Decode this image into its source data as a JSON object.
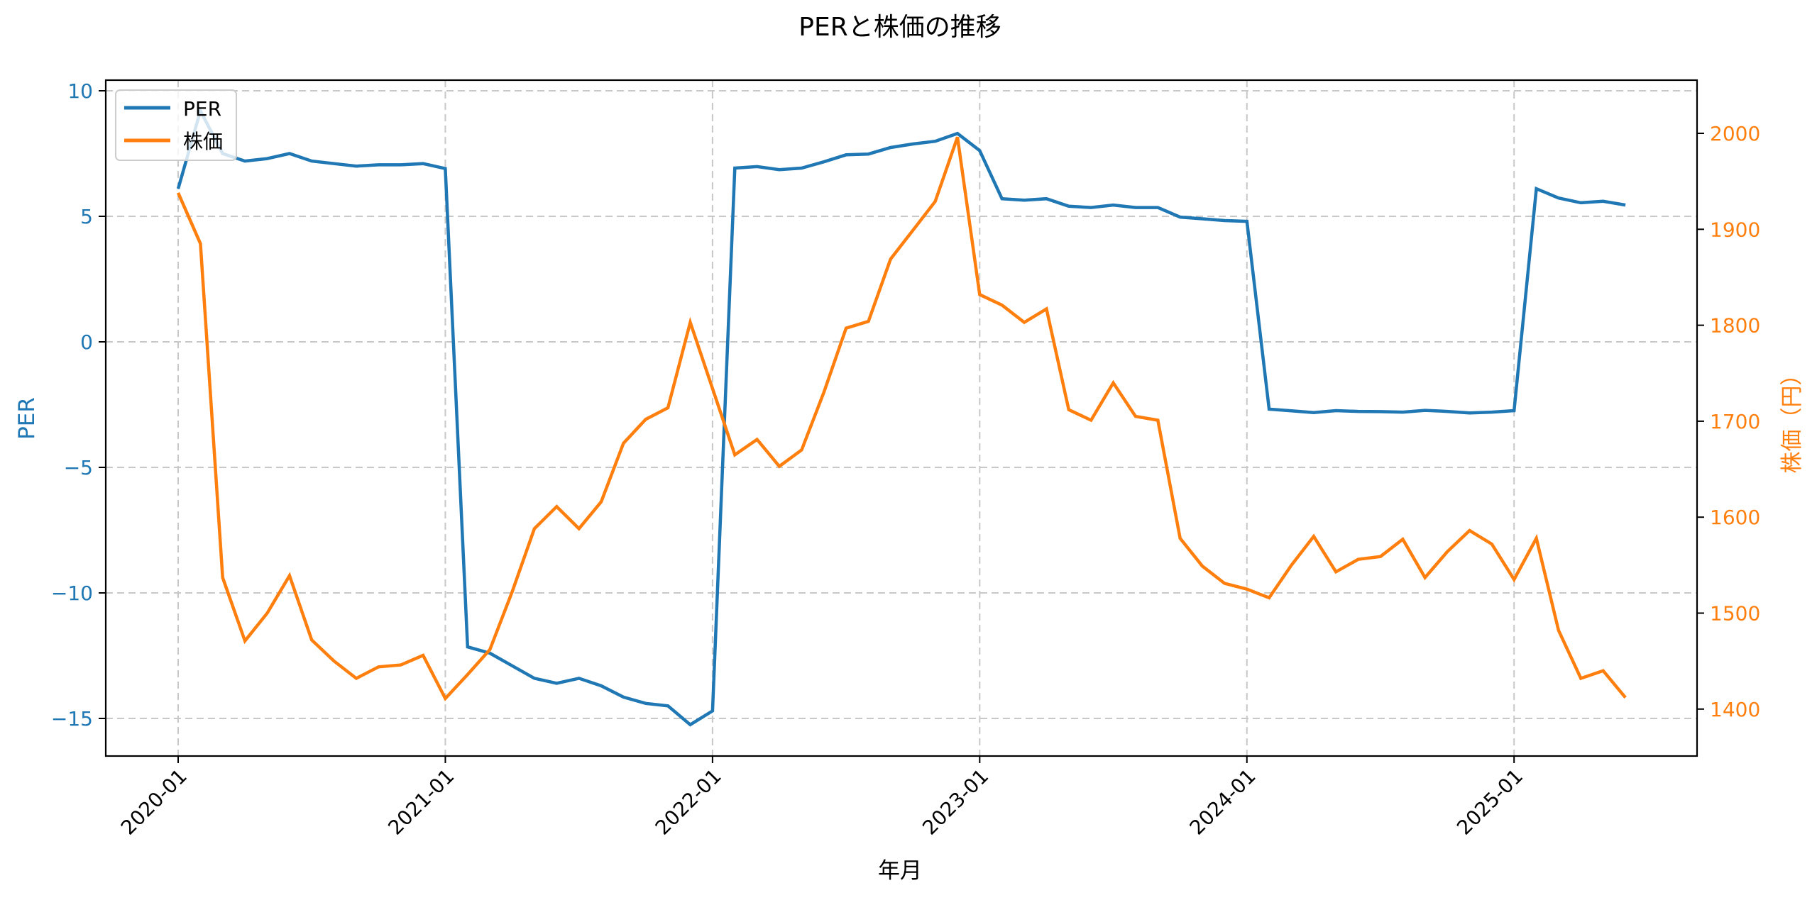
{
  "chart_data": {
    "type": "line",
    "title": "PERと株価の推移",
    "xlabel": "年月",
    "ylabel": "PER",
    "ylabel_right": "株価（円）",
    "x_ticks": [
      "2020-01",
      "2021-01",
      "2022-01",
      "2023-01",
      "2024-01",
      "2025-01"
    ],
    "y_ticks_left": [
      10,
      5,
      0,
      -5,
      -10,
      -15
    ],
    "y_ticks_left_labels": [
      "10",
      "5",
      "0",
      "−5",
      "−10",
      "−15"
    ],
    "y_ticks_right": [
      2000,
      1900,
      1800,
      1700,
      1600,
      1500,
      1400
    ],
    "ylim_left": [
      -16.5,
      10.4
    ],
    "ylim_right": [
      1350,
      2050
    ],
    "grid": true,
    "grid_style": "dashed",
    "legend_position": "upper left",
    "x": [
      "2020-01",
      "2020-02",
      "2020-03",
      "2020-04",
      "2020-05",
      "2020-06",
      "2020-07",
      "2020-08",
      "2020-09",
      "2020-10",
      "2020-11",
      "2020-12",
      "2021-01",
      "2021-02",
      "2021-03",
      "2021-04",
      "2021-05",
      "2021-06",
      "2021-07",
      "2021-08",
      "2021-09",
      "2021-10",
      "2021-11",
      "2021-12",
      "2022-01",
      "2022-02",
      "2022-03",
      "2022-04",
      "2022-05",
      "2022-06",
      "2022-07",
      "2022-08",
      "2022-09",
      "2022-10",
      "2022-11",
      "2022-12",
      "2023-01",
      "2023-02",
      "2023-03",
      "2023-04",
      "2023-05",
      "2023-06",
      "2023-07",
      "2023-08",
      "2023-09",
      "2023-10",
      "2023-11",
      "2023-12",
      "2024-01",
      "2024-02",
      "2024-03",
      "2024-04",
      "2024-05",
      "2024-06",
      "2024-07",
      "2024-08",
      "2024-09",
      "2024-10",
      "2024-11",
      "2024-12",
      "2025-01",
      "2025-02",
      "2025-03",
      "2025-04",
      "2025-05",
      "2025-06"
    ],
    "series": [
      {
        "name": "PER",
        "axis": "left",
        "color": "#1f77b4",
        "values": [
          6.1,
          9.2,
          7.5,
          7.2,
          7.3,
          7.5,
          7.2,
          7.1,
          7.0,
          7.05,
          7.05,
          7.1,
          6.9,
          -12.15,
          -12.4,
          -12.9,
          -13.4,
          -13.6,
          -13.4,
          -13.7,
          -14.15,
          -14.4,
          -14.5,
          -15.25,
          -14.7,
          6.92,
          6.98,
          6.86,
          6.92,
          7.17,
          7.45,
          7.48,
          7.74,
          7.88,
          7.99,
          8.3,
          7.62,
          5.7,
          5.64,
          5.7,
          5.4,
          5.35,
          5.45,
          5.35,
          5.35,
          4.97,
          4.9,
          4.83,
          4.8,
          -2.68,
          -2.75,
          -2.82,
          -2.74,
          -2.77,
          -2.78,
          -2.8,
          -2.73,
          -2.77,
          -2.83,
          -2.8,
          -2.74,
          6.1,
          5.73,
          5.54,
          5.6,
          5.45
        ]
      },
      {
        "name": "株価",
        "axis": "right",
        "color": "#ff7f0e",
        "values": [
          1938,
          1885,
          1537,
          1471,
          1500,
          1539,
          1472,
          1450,
          1432,
          1444,
          1446,
          1456,
          1411,
          1436,
          1462,
          1522,
          1588,
          1611,
          1588,
          1616,
          1677,
          1702,
          1714,
          1803,
          1734,
          1665,
          1681,
          1653,
          1670,
          1730,
          1797,
          1804,
          1869,
          1899,
          1929,
          1996,
          1832,
          1821,
          1803,
          1817,
          1712,
          1701,
          1740,
          1705,
          1701,
          1578,
          1549,
          1531,
          1525,
          1516,
          1550,
          1580,
          1543,
          1556,
          1559,
          1577,
          1537,
          1564,
          1586,
          1572,
          1535,
          1578,
          1482,
          1432,
          1440,
          1412
        ]
      }
    ]
  },
  "legend": {
    "items": [
      {
        "label": "PER",
        "color": "#1f77b4"
      },
      {
        "label": "株価",
        "color": "#ff7f0e"
      }
    ]
  },
  "colors": {
    "left_axis": "#1f77b4",
    "right_axis": "#ff7f0e",
    "grid": "#c8c8c8",
    "spine": "#000000"
  }
}
